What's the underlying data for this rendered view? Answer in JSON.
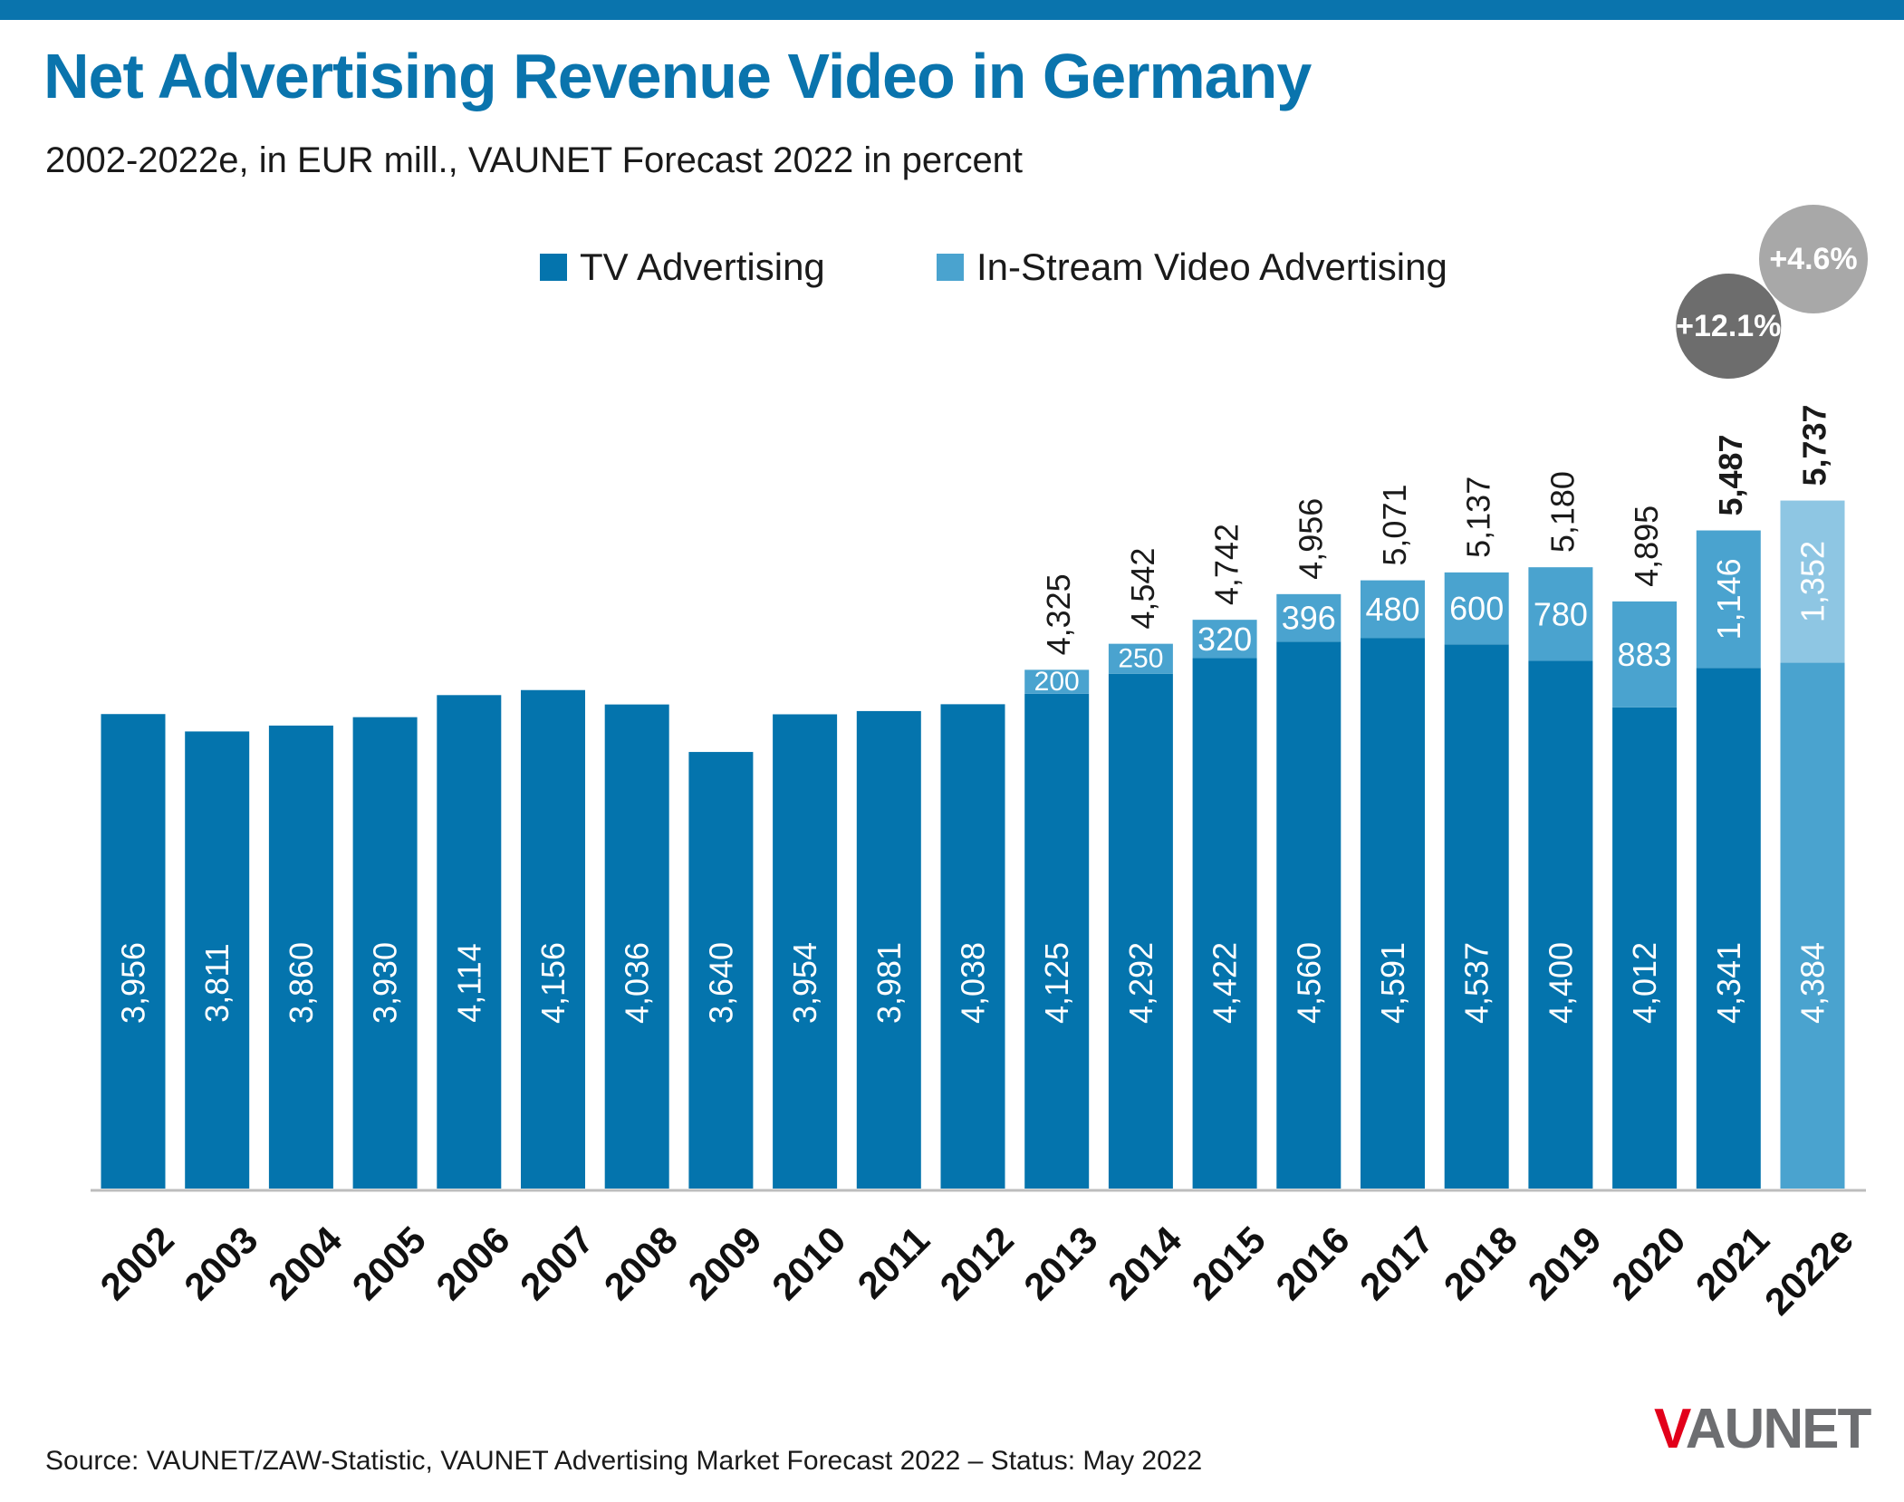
{
  "title": "Net Advertising Revenue Video in Germany",
  "subtitle": "2002-2022e, in EUR mill., VAUNET Forecast 2022 in percent",
  "footer": "Source: VAUNET/ZAW-Statistic, VAUNET Advertising Market Forecast 2022 – Status: May 2022",
  "logo": {
    "v": "V",
    "rest": "AUNET"
  },
  "colors": {
    "tv": "#0474ad",
    "instream": "#4aa3cf",
    "tv_forecast": "#4aa3cf",
    "instream_forecast": "#8ec6e3",
    "badge_2021": "#6d6d6d",
    "badge_2022": "#a8a8a8",
    "axis": "#bdbdbd"
  },
  "chart_data": {
    "type": "bar",
    "stacked": true,
    "categories": [
      "2002",
      "2003",
      "2004",
      "2005",
      "2006",
      "2007",
      "2008",
      "2009",
      "2010",
      "2011",
      "2012",
      "2013",
      "2014",
      "2015",
      "2016",
      "2017",
      "2018",
      "2019",
      "2020",
      "2021",
      "2022e"
    ],
    "series": [
      {
        "name": "TV Advertising",
        "values": [
          3956,
          3811,
          3860,
          3930,
          4114,
          4156,
          4036,
          3640,
          3954,
          3981,
          4038,
          4125,
          4292,
          4422,
          4560,
          4591,
          4537,
          4400,
          4012,
          4341,
          4384
        ]
      },
      {
        "name": "In-Stream Video Advertising",
        "values": [
          null,
          null,
          null,
          null,
          null,
          null,
          null,
          null,
          null,
          null,
          null,
          200,
          250,
          320,
          396,
          480,
          600,
          780,
          883,
          1146,
          1352
        ]
      }
    ],
    "total_labels": [
      null,
      null,
      null,
      null,
      null,
      null,
      null,
      null,
      null,
      null,
      null,
      "4,325",
      "4,542",
      "4,742",
      "4,956",
      "5,071",
      "5,137",
      "5,180",
      "4,895",
      "5,487",
      "5,737"
    ],
    "bold_totals": [
      "2021",
      "2022e"
    ],
    "growth_badges": [
      {
        "category": "2021",
        "label": "+12.1%"
      },
      {
        "category": "2022e",
        "label": "+4.6%"
      }
    ],
    "ylim": [
      0,
      6000
    ],
    "legend": "top-center",
    "grid": false
  }
}
